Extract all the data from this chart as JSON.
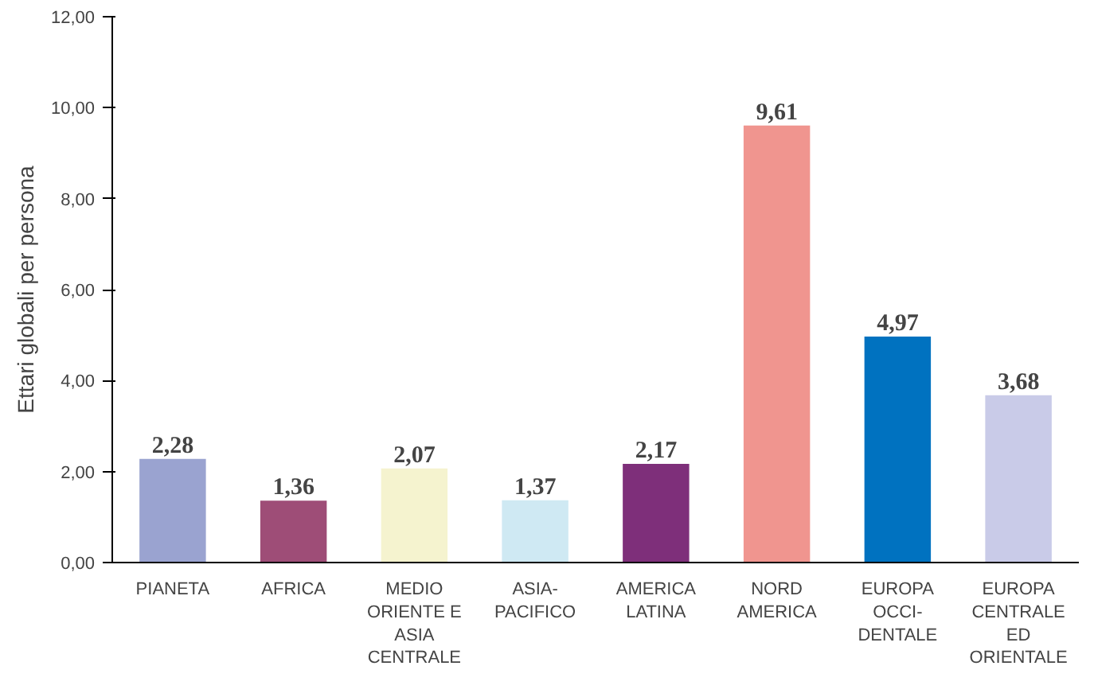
{
  "chart_data": {
    "type": "bar",
    "ylabel": "Ettari globali per persona",
    "categories": [
      "PIANETA",
      "AFRICA",
      "MEDIO\nORIENTE E\nASIA\nCENTRALE",
      "ASIA-\nPACIFICO",
      "AMERICA\nLATINA",
      "NORD\nAMERICA",
      "EUROPA\nOCCI-\nDENTALE",
      "EUROPA\nCENTRALE\nED\nORIENTALE"
    ],
    "values": [
      2.28,
      1.36,
      2.07,
      1.37,
      2.17,
      9.61,
      4.97,
      3.68
    ],
    "value_labels": [
      "2,28",
      "1,36",
      "2,07",
      "1,37",
      "2,17",
      "9,61",
      "4,97",
      "3,68"
    ],
    "colors": [
      "#9aa3d0",
      "#9e4d77",
      "#f5f3cf",
      "#cfe9f3",
      "#7e2f7a",
      "#f0958f",
      "#0072c0",
      "#c9cbe8"
    ],
    "ylim": [
      0,
      12
    ],
    "yticks": [
      {
        "value": 0,
        "label": "0,00"
      },
      {
        "value": 2,
        "label": "2,00"
      },
      {
        "value": 4,
        "label": "4,00"
      },
      {
        "value": 6,
        "label": "6,00"
      },
      {
        "value": 8,
        "label": "8,00"
      },
      {
        "value": 10,
        "label": "10,00"
      },
      {
        "value": 12,
        "label": "12,00"
      }
    ],
    "grid": false
  }
}
